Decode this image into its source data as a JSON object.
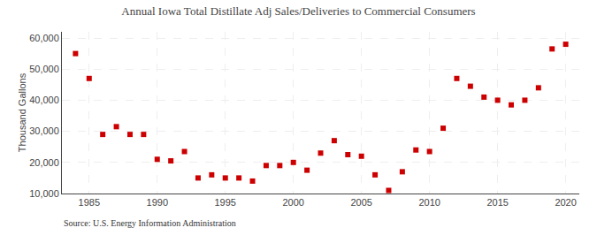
{
  "chart_data": {
    "type": "scatter",
    "title": "Annual Iowa Total Distillate Adj Sales/Deliveries to Commercial Consumers",
    "ylabel": "Thousand Gallons",
    "source": "Source: U.S. Energy Information Administration",
    "color": "#cc0000",
    "marker": "square",
    "grid": true,
    "x": [
      1984,
      1985,
      1986,
      1987,
      1988,
      1989,
      1990,
      1991,
      1992,
      1993,
      1994,
      1995,
      1996,
      1997,
      1998,
      1999,
      2000,
      2001,
      2002,
      2003,
      2004,
      2005,
      2006,
      2007,
      2008,
      2009,
      2010,
      2011,
      2012,
      2013,
      2014,
      2015,
      2016,
      2017,
      2018,
      2019,
      2020
    ],
    "values": [
      55000,
      47000,
      29000,
      31500,
      29000,
      29000,
      21000,
      20500,
      23500,
      15000,
      16000,
      15000,
      15000,
      14000,
      19000,
      19000,
      20000,
      17500,
      23000,
      27000,
      22500,
      22000,
      16000,
      11000,
      17000,
      24000,
      23500,
      31000,
      47000,
      44500,
      41000,
      40000,
      38500,
      40000,
      44000,
      56500,
      58000
    ],
    "xlim": [
      1983,
      2021
    ],
    "xticks": [
      1985,
      1990,
      1995,
      2000,
      2005,
      2010,
      2015,
      2020
    ],
    "ylim": [
      10000,
      62000
    ],
    "yticks": [
      {
        "value": 10000,
        "label": "10,000"
      },
      {
        "value": 20000,
        "label": "20,000"
      },
      {
        "value": 30000,
        "label": "30,000"
      },
      {
        "value": 40000,
        "label": "40,000"
      },
      {
        "value": 50000,
        "label": "50,000"
      },
      {
        "value": 60000,
        "label": "60,000"
      }
    ]
  }
}
